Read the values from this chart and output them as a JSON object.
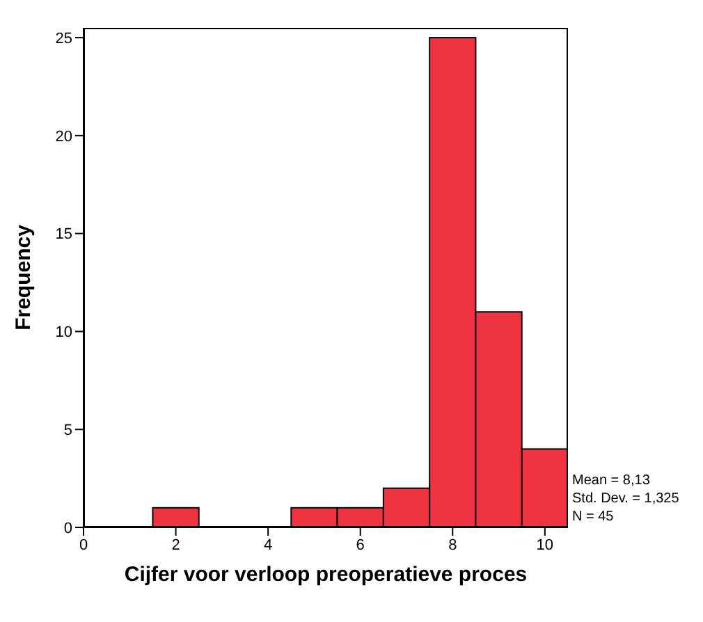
{
  "chart_data": {
    "type": "histogram",
    "xlabel": "Cijfer voor verloop preoperatieve proces",
    "ylabel": "Frequency",
    "bins": [
      1.5,
      2.5,
      3.5,
      4.5,
      5.5,
      6.5,
      7.5,
      8.5,
      9.5,
      10.5
    ],
    "values": [
      1,
      0,
      0,
      1,
      1,
      2,
      25,
      11,
      4
    ],
    "color": "#ef3340",
    "xlim": [
      0,
      10.5
    ],
    "xticks": [
      0,
      2,
      4,
      6,
      8,
      10
    ],
    "ylim": [
      0,
      25.5
    ],
    "yticks": [
      0,
      5,
      10,
      15,
      20,
      25
    ],
    "grid": false,
    "legend": false,
    "annotations": [
      "Mean = 8,13",
      "Std. Dev. = 1,325",
      "N = 45"
    ]
  }
}
